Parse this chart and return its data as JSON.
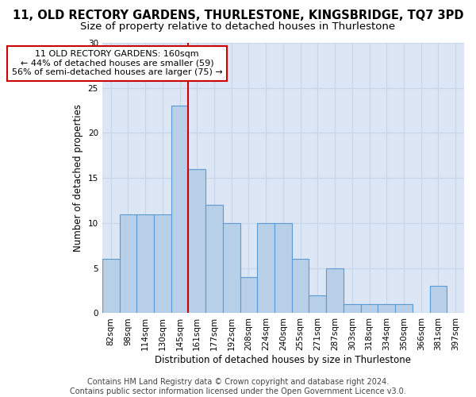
{
  "title": "11, OLD RECTORY GARDENS, THURLESTONE, KINGSBRIDGE, TQ7 3PD",
  "subtitle": "Size of property relative to detached houses in Thurlestone",
  "xlabel": "Distribution of detached houses by size in Thurlestone",
  "ylabel": "Number of detached properties",
  "categories": [
    "82sqm",
    "98sqm",
    "114sqm",
    "130sqm",
    "145sqm",
    "161sqm",
    "177sqm",
    "192sqm",
    "208sqm",
    "224sqm",
    "240sqm",
    "255sqm",
    "271sqm",
    "287sqm",
    "303sqm",
    "318sqm",
    "334sqm",
    "350sqm",
    "366sqm",
    "381sqm",
    "397sqm"
  ],
  "values": [
    6,
    11,
    11,
    11,
    23,
    16,
    12,
    10,
    4,
    10,
    10,
    6,
    2,
    5,
    1,
    1,
    1,
    1,
    0,
    3,
    0
  ],
  "bar_color": "#b8cfe8",
  "bar_edge_color": "#5b9bd5",
  "marker_index": 5,
  "marker_color": "#cc0000",
  "annotation_text": "11 OLD RECTORY GARDENS: 160sqm\n← 44% of detached houses are smaller (59)\n56% of semi-detached houses are larger (75) →",
  "annotation_box_color": "#ffffff",
  "annotation_box_edge": "#cc0000",
  "ylim": [
    0,
    30
  ],
  "yticks": [
    0,
    5,
    10,
    15,
    20,
    25,
    30
  ],
  "grid_color": "#c8d4e8",
  "background_color": "#dce6f5",
  "footer": "Contains HM Land Registry data © Crown copyright and database right 2024.\nContains public sector information licensed under the Open Government Licence v3.0.",
  "title_fontsize": 10.5,
  "subtitle_fontsize": 9.5,
  "xlabel_fontsize": 8.5,
  "ylabel_fontsize": 8.5,
  "tick_fontsize": 7.5,
  "annotation_fontsize": 8,
  "footer_fontsize": 7
}
